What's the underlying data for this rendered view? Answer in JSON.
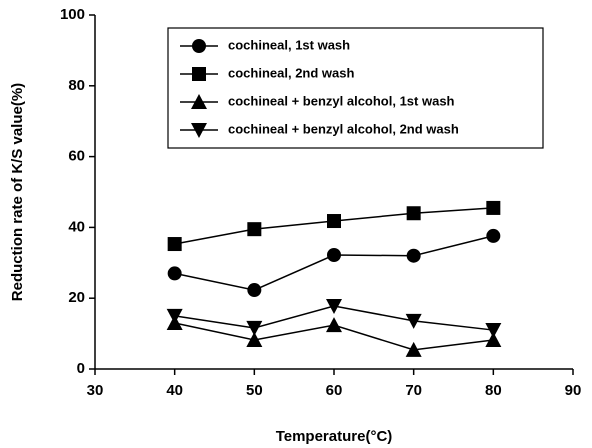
{
  "chart_data": {
    "type": "line",
    "xlabel": "Temperature(°C)",
    "ylabel": "Reduction rate of K/S value(%)",
    "x": [
      40,
      50,
      60,
      70,
      80
    ],
    "series": [
      {
        "name": "cochineal, 1st wash",
        "color": "#000000",
        "marker": "circle",
        "values": [
          27,
          22.3,
          32.2,
          32,
          37.6
        ]
      },
      {
        "name": "cochineal, 2nd wash",
        "color": "#000000",
        "marker": "square",
        "values": [
          35.3,
          39.5,
          41.8,
          44,
          45.5
        ]
      },
      {
        "name": "cochineal + benzyl alcohol, 1st wash",
        "color": "#000000",
        "marker": "triangle-up",
        "values": [
          13,
          8.2,
          12.4,
          5.4,
          8.2
        ]
      },
      {
        "name": "cochineal + benzyl alcohol, 2nd wash",
        "color": "#000000",
        "marker": "triangle-down",
        "values": [
          15,
          11.6,
          17.8,
          13.6,
          11
        ]
      }
    ],
    "xlim": [
      30,
      90
    ],
    "xticks": [
      30,
      40,
      50,
      60,
      70,
      80,
      90
    ],
    "ylim": [
      0,
      100
    ],
    "yticks": [
      0,
      20,
      40,
      60,
      80,
      100
    ],
    "grid": false,
    "legend": "upper center"
  }
}
